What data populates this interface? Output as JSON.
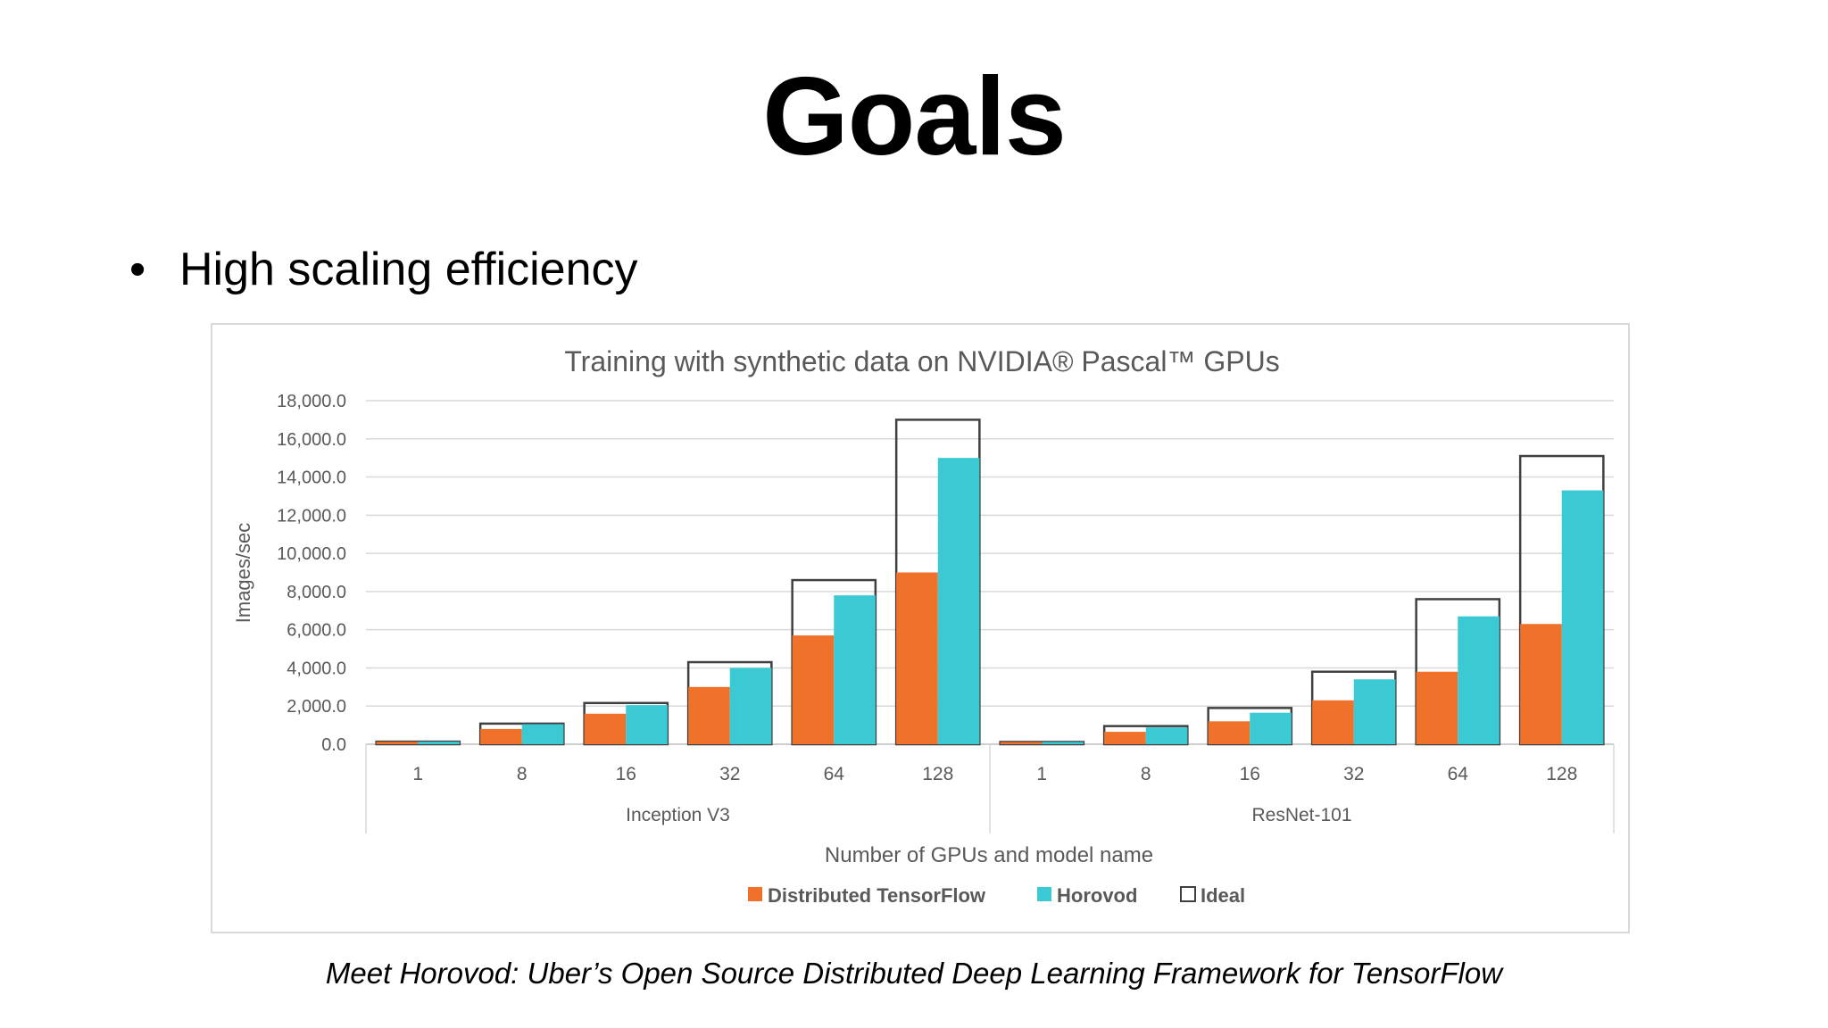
{
  "slide": {
    "title": "Goals",
    "bullets": [
      "High scaling efficiency"
    ],
    "caption": "Meet Horovod: Uber’s Open Source Distributed Deep Learning Framework for TensorFlow"
  },
  "chart_data": {
    "type": "bar",
    "title": "Training with synthetic data on NVIDIA® Pascal™ GPUs",
    "xlabel": "Number of GPUs and model name",
    "ylabel": "Images/sec",
    "ylim": [
      0,
      18000
    ],
    "yticks": [
      "0.0",
      "2,000.0",
      "4,000.0",
      "6,000.0",
      "8,000.0",
      "10,000.0",
      "12,000.0",
      "14,000.0",
      "16,000.0",
      "18,000.0"
    ],
    "groups": [
      "Inception V3",
      "ResNet-101"
    ],
    "categories": [
      "1",
      "8",
      "16",
      "32",
      "64",
      "128"
    ],
    "series": [
      {
        "name": "Distributed TensorFlow",
        "color": "#f0712a",
        "values": [
          [
            130,
            800,
            1600,
            3000,
            5700,
            9000
          ],
          [
            115,
            650,
            1200,
            2300,
            3800,
            6300
          ]
        ]
      },
      {
        "name": "Horovod",
        "color": "#3bc9d3",
        "values": [
          [
            135,
            1050,
            2050,
            4000,
            7800,
            15000
          ],
          [
            118,
            880,
            1650,
            3400,
            6700,
            13300
          ]
        ]
      },
      {
        "name": "Ideal",
        "color": "#404040",
        "values": [
          [
            135,
            1080,
            2160,
            4300,
            8600,
            17000
          ],
          [
            118,
            950,
            1900,
            3800,
            7600,
            15100
          ]
        ]
      }
    ],
    "grid": true,
    "legend": "bottom"
  }
}
